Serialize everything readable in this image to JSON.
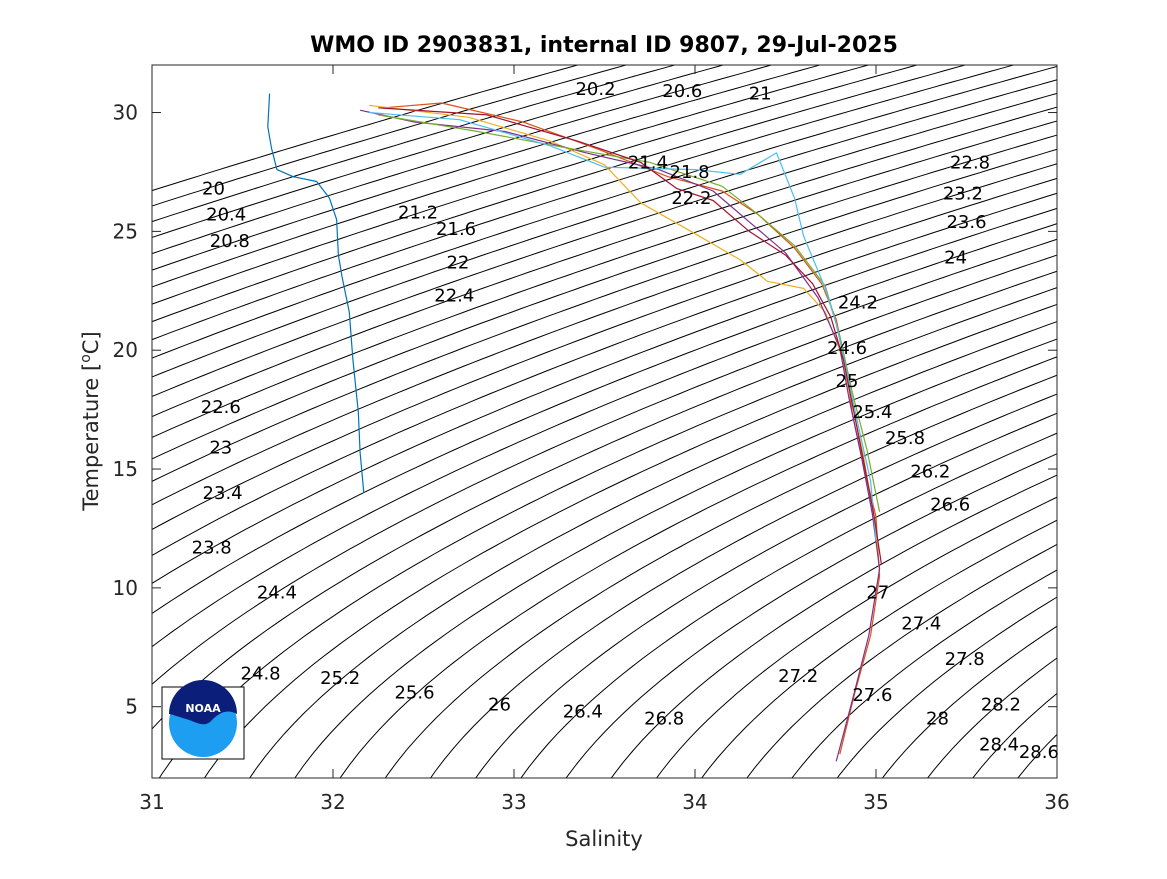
{
  "chart_data": {
    "type": "line",
    "title": "WMO ID 2903831, internal ID 9807, 29-Jul-2025",
    "xlabel": "Salinity",
    "ylabel": "Temperature [",
    "ylabel_sup": "o",
    "ylabel_end": "C]",
    "xlim": [
      31,
      36
    ],
    "ylim": [
      2,
      32
    ],
    "x_ticks": [
      31,
      32,
      33,
      34,
      35,
      36
    ],
    "x_tick_labels": [
      "31",
      "32",
      "33",
      "34",
      "35",
      "36"
    ],
    "y_ticks": [
      5,
      10,
      15,
      20,
      25,
      30
    ],
    "y_tick_labels": [
      "5",
      "10",
      "15",
      "20",
      "25",
      "30"
    ],
    "grid": false,
    "logo": {
      "name": "noaa-logo",
      "text": "NOAA",
      "colors": {
        "dark": "#0a1e7a",
        "light": "#1e9ef0"
      }
    },
    "density_contours": {
      "levels": [
        19.8,
        20,
        20.2,
        20.4,
        20.6,
        20.8,
        21,
        21.2,
        21.4,
        21.6,
        21.8,
        22,
        22.2,
        22.4,
        22.6,
        22.8,
        23,
        23.2,
        23.4,
        23.6,
        23.8,
        24,
        24.2,
        24.4,
        24.6,
        24.8,
        25,
        25.2,
        25.4,
        25.6,
        25.8,
        26,
        26.2,
        26.4,
        26.6,
        26.8,
        27,
        27.2,
        27.4,
        27.6,
        27.8,
        28,
        28.2,
        28.4,
        28.6,
        28.8
      ],
      "color": "#000000",
      "labels": [
        {
          "text": "20",
          "s": 31.34,
          "t": 26.8
        },
        {
          "text": "20.2",
          "s": 33.45,
          "t": 31.0
        },
        {
          "text": "20.4",
          "s": 31.41,
          "t": 25.7
        },
        {
          "text": "20.6",
          "s": 33.93,
          "t": 30.9
        },
        {
          "text": "20.8",
          "s": 31.43,
          "t": 24.6
        },
        {
          "text": "21",
          "s": 34.36,
          "t": 30.8
        },
        {
          "text": "21.2",
          "s": 32.47,
          "t": 25.8
        },
        {
          "text": "21.4",
          "s": 33.74,
          "t": 27.9
        },
        {
          "text": "21.6",
          "s": 32.68,
          "t": 25.1
        },
        {
          "text": "21.8",
          "s": 33.97,
          "t": 27.5
        },
        {
          "text": "22",
          "s": 32.69,
          "t": 23.7
        },
        {
          "text": "22.2",
          "s": 33.98,
          "t": 26.4
        },
        {
          "text": "22.4",
          "s": 32.67,
          "t": 22.3
        },
        {
          "text": "22.6",
          "s": 31.38,
          "t": 17.6
        },
        {
          "text": "22.8",
          "s": 35.52,
          "t": 27.9
        },
        {
          "text": "23",
          "s": 31.38,
          "t": 15.9
        },
        {
          "text": "23.2",
          "s": 35.48,
          "t": 26.6
        },
        {
          "text": "23.4",
          "s": 31.39,
          "t": 14.0
        },
        {
          "text": "23.6",
          "s": 35.5,
          "t": 25.4
        },
        {
          "text": "23.8",
          "s": 31.33,
          "t": 11.7
        },
        {
          "text": "24",
          "s": 35.44,
          "t": 23.9
        },
        {
          "text": "24.2",
          "s": 34.9,
          "t": 22.0
        },
        {
          "text": "24.4",
          "s": 31.69,
          "t": 9.8
        },
        {
          "text": "24.6",
          "s": 34.84,
          "t": 20.1
        },
        {
          "text": "24.8",
          "s": 31.6,
          "t": 6.4
        },
        {
          "text": "25",
          "s": 34.84,
          "t": 18.7
        },
        {
          "text": "25.2",
          "s": 32.04,
          "t": 6.2
        },
        {
          "text": "25.4",
          "s": 34.98,
          "t": 17.4
        },
        {
          "text": "25.6",
          "s": 32.45,
          "t": 5.6
        },
        {
          "text": "25.8",
          "s": 35.16,
          "t": 16.3
        },
        {
          "text": "26",
          "s": 32.92,
          "t": 5.1
        },
        {
          "text": "26.2",
          "s": 35.3,
          "t": 14.9
        },
        {
          "text": "26.4",
          "s": 33.38,
          "t": 4.8
        },
        {
          "text": "26.6",
          "s": 35.41,
          "t": 13.5
        },
        {
          "text": "26.8",
          "s": 33.83,
          "t": 4.5
        },
        {
          "text": "27",
          "s": 35.01,
          "t": 9.8
        },
        {
          "text": "27.2",
          "s": 34.57,
          "t": 6.3
        },
        {
          "text": "27.4",
          "s": 35.25,
          "t": 8.5
        },
        {
          "text": "27.6",
          "s": 34.98,
          "t": 5.5
        },
        {
          "text": "27.8",
          "s": 35.49,
          "t": 7.0
        },
        {
          "text": "28",
          "s": 35.34,
          "t": 4.5
        },
        {
          "text": "28.2",
          "s": 35.69,
          "t": 5.1
        },
        {
          "text": "28.4",
          "s": 35.68,
          "t": 3.4
        },
        {
          "text": "28.6",
          "s": 35.9,
          "t": 3.1
        }
      ]
    },
    "series": [
      {
        "color": "#0072bd",
        "points": [
          [
            31.65,
            30.8
          ],
          [
            31.64,
            29.4
          ],
          [
            31.66,
            28.5
          ],
          [
            31.69,
            27.6
          ],
          [
            31.78,
            27.3
          ],
          [
            31.91,
            27.1
          ],
          [
            31.98,
            26.4
          ],
          [
            32.02,
            25.5
          ],
          [
            32.03,
            24.0
          ],
          [
            32.05,
            23.1
          ],
          [
            32.09,
            21.6
          ],
          [
            32.11,
            19.6
          ],
          [
            32.14,
            17.4
          ],
          [
            32.15,
            15.7
          ],
          [
            32.17,
            14.0
          ]
        ]
      },
      {
        "color": "#d95319",
        "points": [
          [
            32.28,
            30.2
          ],
          [
            32.6,
            30.4
          ],
          [
            33.05,
            29.6
          ],
          [
            33.45,
            28.5
          ],
          [
            33.85,
            27.3
          ],
          [
            34.15,
            26.7
          ],
          [
            34.35,
            25.7
          ],
          [
            34.55,
            24.3
          ],
          [
            34.7,
            22.8
          ],
          [
            34.78,
            21.3
          ],
          [
            34.83,
            19.5
          ],
          [
            34.87,
            17.3
          ],
          [
            34.93,
            15.2
          ],
          [
            35.0,
            13.0
          ],
          [
            35.02,
            10.5
          ],
          [
            34.97,
            8.0
          ],
          [
            34.88,
            5.5
          ],
          [
            34.8,
            3.0
          ]
        ]
      },
      {
        "color": "#edb120",
        "points": [
          [
            32.2,
            30.3
          ],
          [
            32.75,
            29.8
          ],
          [
            33.2,
            28.8
          ],
          [
            33.5,
            27.8
          ],
          [
            33.7,
            26.2
          ],
          [
            34.0,
            24.9
          ],
          [
            34.25,
            23.8
          ],
          [
            34.4,
            22.9
          ],
          [
            34.6,
            22.6
          ],
          [
            34.72,
            21.6
          ],
          [
            34.8,
            20.0
          ],
          [
            34.86,
            18.0
          ],
          [
            34.93,
            15.6
          ],
          [
            35.0,
            12.5
          ],
          [
            35.02,
            10.6
          ]
        ]
      },
      {
        "color": "#7e2f8e",
        "points": [
          [
            32.15,
            30.1
          ],
          [
            32.45,
            29.6
          ],
          [
            32.95,
            29.2
          ],
          [
            33.4,
            28.3
          ],
          [
            33.8,
            27.6
          ],
          [
            34.1,
            26.7
          ],
          [
            34.3,
            25.4
          ],
          [
            34.5,
            24.1
          ],
          [
            34.68,
            22.2
          ],
          [
            34.8,
            20.1
          ],
          [
            34.85,
            18.0
          ],
          [
            34.92,
            15.5
          ],
          [
            34.98,
            13.1
          ],
          [
            35.02,
            10.8
          ],
          [
            34.96,
            8.0
          ],
          [
            34.87,
            5.3
          ],
          [
            34.78,
            2.7
          ]
        ]
      },
      {
        "color": "#77ac30",
        "points": [
          [
            32.25,
            29.9
          ],
          [
            32.8,
            29.2
          ],
          [
            33.3,
            28.5
          ],
          [
            33.75,
            27.9
          ],
          [
            34.15,
            26.9
          ],
          [
            34.35,
            25.7
          ],
          [
            34.55,
            24.4
          ],
          [
            34.72,
            22.7
          ],
          [
            34.8,
            20.6
          ],
          [
            34.87,
            18.2
          ],
          [
            34.95,
            15.8
          ],
          [
            35.02,
            13.2
          ]
        ]
      },
      {
        "color": "#4dbeee",
        "points": [
          [
            32.2,
            30.0
          ],
          [
            32.7,
            29.7
          ],
          [
            33.2,
            28.6
          ],
          [
            33.5,
            27.7
          ],
          [
            34.0,
            27.6
          ],
          [
            34.25,
            27.4
          ],
          [
            34.45,
            28.3
          ],
          [
            34.55,
            26.4
          ],
          [
            34.6,
            24.8
          ],
          [
            34.72,
            22.6
          ],
          [
            34.78,
            21.1
          ],
          [
            34.83,
            19.4
          ],
          [
            34.9,
            16.9
          ],
          [
            34.97,
            14.5
          ],
          [
            35.0,
            12.0
          ]
        ]
      },
      {
        "color": "#a2142f",
        "points": [
          [
            32.25,
            30.2
          ],
          [
            32.85,
            29.9
          ],
          [
            33.35,
            28.8
          ],
          [
            33.7,
            27.9
          ],
          [
            33.9,
            26.8
          ],
          [
            34.1,
            26.3
          ],
          [
            34.3,
            25.0
          ],
          [
            34.5,
            24.0
          ],
          [
            34.65,
            22.8
          ],
          [
            34.75,
            21.4
          ],
          [
            34.82,
            19.6
          ],
          [
            34.87,
            17.7
          ],
          [
            34.93,
            15.4
          ],
          [
            34.99,
            13.0
          ],
          [
            35.03,
            11.0
          ]
        ]
      }
    ]
  }
}
